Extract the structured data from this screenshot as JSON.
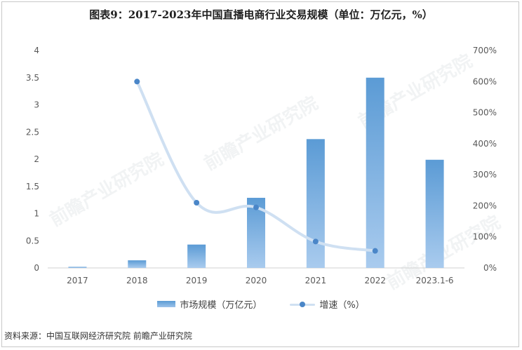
{
  "title": "图表9：2017-2023年中国直播电商行业交易规模（单位：万亿元，%）",
  "source": "资料来源：中国互联网经济研究院 前瞻产业研究院",
  "watermark": "前瞻产业研究院",
  "legend": {
    "bar_label": "市场规模（万亿元）",
    "line_label": "增速（%）"
  },
  "colors": {
    "bar_top": "#5b9bd5",
    "bar_bottom": "#a9cbee",
    "line": "#cfe0f2",
    "marker": "#4a86c8"
  },
  "chart_data": {
    "type": "bar",
    "categories": [
      "2017",
      "2018",
      "2019",
      "2020",
      "2021",
      "2022",
      "2023.1-6"
    ],
    "series": [
      {
        "name": "市场规模（万亿元）",
        "type": "bar",
        "axis": "left",
        "values": [
          0.02,
          0.14,
          0.43,
          1.29,
          2.37,
          3.5,
          1.99
        ]
      },
      {
        "name": "增速（%）",
        "type": "line",
        "axis": "right",
        "values": [
          null,
          600,
          210,
          195,
          85,
          55,
          null
        ]
      }
    ],
    "ylim_left": [
      0,
      4
    ],
    "yticks_left": [
      "0",
      "0.5",
      "1",
      "1.5",
      "2",
      "2.5",
      "3",
      "3.5",
      "4"
    ],
    "ylim_right": [
      0,
      700
    ],
    "yticks_right": [
      "0%",
      "100%",
      "200%",
      "300%",
      "400%",
      "500%",
      "600%",
      "700%"
    ],
    "grid": false,
    "legend_position": "bottom"
  }
}
